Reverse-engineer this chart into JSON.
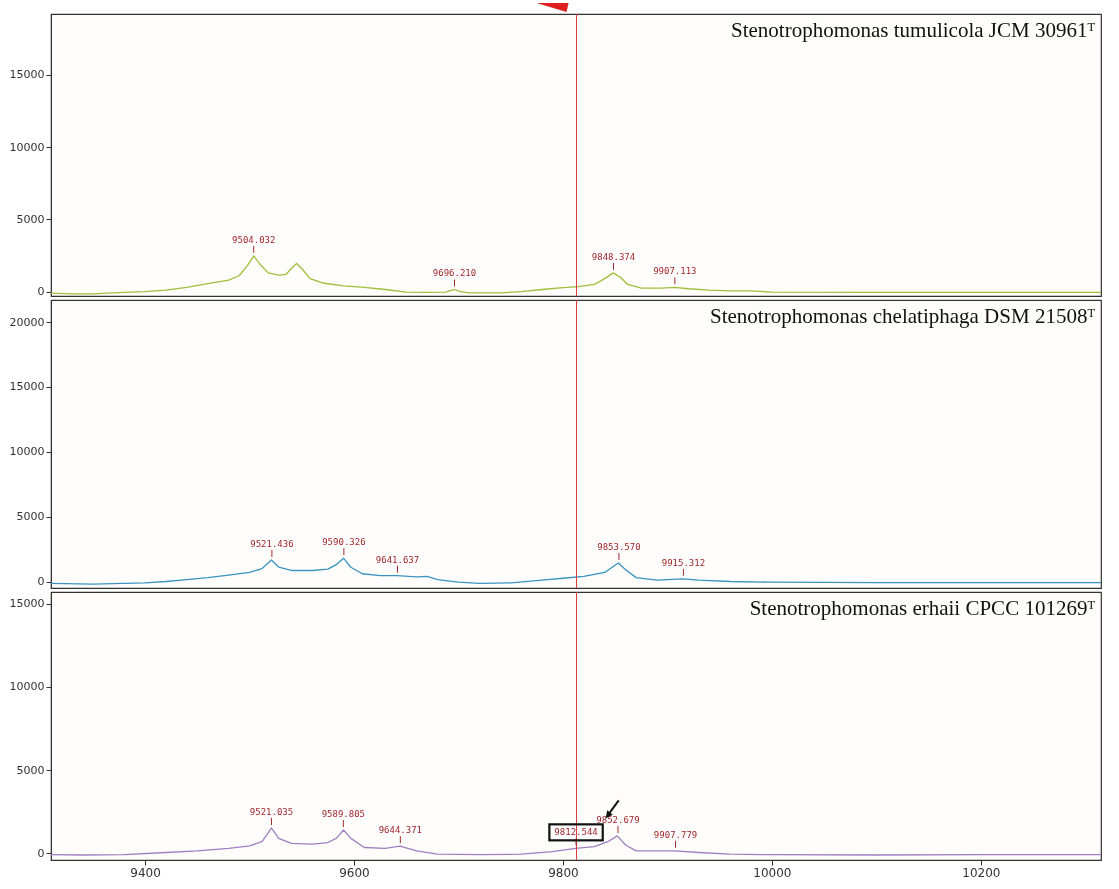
{
  "chart_data": [
    {
      "type": "line",
      "title": "Stenotrophomonas tumulicola JCM 30961ᵀ",
      "xlim": [
        9310,
        10315
      ],
      "ylim": [
        -300,
        19200
      ],
      "yticks": [
        0,
        5000,
        10000,
        15000
      ],
      "grid": false,
      "tick_labels": "y",
      "marker": "none",
      "x": [
        9310,
        9330,
        9350,
        9380,
        9400,
        9420,
        9440,
        9460,
        9480,
        9490,
        9498,
        9504,
        9510,
        9518,
        9528,
        9535,
        9540,
        9545,
        9550,
        9558,
        9570,
        9590,
        9610,
        9630,
        9650,
        9670,
        9688,
        9696,
        9702,
        9710,
        9740,
        9760,
        9780,
        9800,
        9815,
        9830,
        9840,
        9848,
        9855,
        9862,
        9875,
        9895,
        9907,
        9920,
        9940,
        9960,
        9980,
        10000,
        10100,
        10200,
        10315
      ],
      "series": [
        {
          "color": "#9dbf3a",
          "values": [
            -100,
            -150,
            -150,
            -50,
            0,
            100,
            300,
            550,
            800,
            1100,
            1800,
            2480,
            1900,
            1300,
            1150,
            1200,
            1600,
            1950,
            1600,
            900,
            600,
            400,
            300,
            150,
            -30,
            -50,
            -30,
            150,
            0,
            -80,
            -80,
            0,
            150,
            280,
            350,
            500,
            900,
            1300,
            1000,
            500,
            250,
            250,
            300,
            200,
            100,
            50,
            60,
            -30,
            -50,
            -50,
            -50
          ]
        }
      ],
      "ref_lines": [
        {
          "axis": "x",
          "value": 9813,
          "color": "#d83a3a"
        }
      ],
      "annotations": [
        {
          "text": "9504.032",
          "x": 9504.032,
          "y": 2480
        },
        {
          "text": "9696.210",
          "x": 9696.21,
          "y": 150
        },
        {
          "text": "9848.374",
          "x": 9848.374,
          "y": 1300
        },
        {
          "text": "9907.113",
          "x": 9907.113,
          "y": 300
        }
      ]
    },
    {
      "type": "line",
      "title": "Stenotrophomonas chelatiphaga DSM 21508ᵀ",
      "xlim": [
        9310,
        10315
      ],
      "ylim": [
        -500,
        21700
      ],
      "yticks": [
        0,
        5000,
        10000,
        15000,
        20000
      ],
      "grid": false,
      "tick_labels": "y",
      "marker": "none",
      "x": [
        9310,
        9350,
        9380,
        9400,
        9420,
        9440,
        9460,
        9480,
        9500,
        9512,
        9521,
        9528,
        9540,
        9560,
        9575,
        9583,
        9590,
        9597,
        9608,
        9625,
        9641,
        9660,
        9670,
        9680,
        9700,
        9720,
        9750,
        9780,
        9800,
        9820,
        9840,
        9853,
        9860,
        9870,
        9890,
        9915,
        9930,
        9960,
        10000,
        10100,
        10200,
        10315
      ],
      "series": [
        {
          "color": "#3a93bf",
          "values": [
            -150,
            -200,
            -150,
            -100,
            0,
            150,
            300,
            500,
            700,
            1000,
            1660,
            1100,
            850,
            850,
            950,
            1300,
            1800,
            1100,
            600,
            450,
            450,
            350,
            400,
            150,
            -50,
            -150,
            -100,
            100,
            250,
            400,
            700,
            1430,
            900,
            300,
            100,
            200,
            100,
            0,
            -50,
            -80,
            -80,
            -80
          ]
        }
      ],
      "ref_lines": [
        {
          "axis": "x",
          "value": 9813,
          "color": "#d83a3a"
        }
      ],
      "annotations": [
        {
          "text": "9521.436",
          "x": 9521.436,
          "y": 1660
        },
        {
          "text": "9590.326",
          "x": 9590.326,
          "y": 1800
        },
        {
          "text": "9641.637",
          "x": 9641.637,
          "y": 450
        },
        {
          "text": "9853.570",
          "x": 9853.57,
          "y": 1430
        },
        {
          "text": "9915.312",
          "x": 9915.312,
          "y": 200
        }
      ]
    },
    {
      "type": "line",
      "title": "Stenotrophomonas erhaii CPCC 101269ᵀ",
      "xlim": [
        9310,
        10315
      ],
      "ylim": [
        -400,
        15700
      ],
      "xticks": [
        9400,
        9600,
        9800,
        10000,
        10200
      ],
      "yticks": [
        0,
        5000,
        10000,
        15000
      ],
      "grid": false,
      "marker": "none",
      "x": [
        9310,
        9340,
        9380,
        9420,
        9450,
        9480,
        9500,
        9512,
        9521,
        9528,
        9540,
        9560,
        9575,
        9583,
        9590,
        9597,
        9610,
        9630,
        9644,
        9660,
        9680,
        9720,
        9760,
        9790,
        9812,
        9830,
        9843,
        9852,
        9860,
        9870,
        9907,
        9930,
        9960,
        10000,
        10100,
        10200,
        10315
      ],
      "series": [
        {
          "color": "#a07fc0",
          "values": [
            -80,
            -100,
            -80,
            50,
            150,
            300,
            450,
            700,
            1520,
            900,
            600,
            550,
            650,
            900,
            1400,
            900,
            350,
            300,
            430,
            150,
            -50,
            -80,
            -50,
            100,
            300,
            400,
            700,
            1050,
            500,
            150,
            150,
            50,
            -50,
            -80,
            -100,
            -80,
            -80
          ]
        }
      ],
      "ref_lines": [
        {
          "axis": "x",
          "value": 9813,
          "color": "#d83a3a"
        }
      ],
      "annotations": [
        {
          "text": "9521.035",
          "x": 9521.035,
          "y": 1520
        },
        {
          "text": "9589.805",
          "x": 9589.805,
          "y": 1400
        },
        {
          "text": "9644.371",
          "x": 9644.371,
          "y": 430
        },
        {
          "text": "9812.544",
          "x": 9812.544,
          "y": 300
        },
        {
          "text": "9852.679",
          "x": 9852.679,
          "y": 1050
        },
        {
          "text": "9907.779",
          "x": 9907.779,
          "y": 150
        }
      ]
    }
  ]
}
